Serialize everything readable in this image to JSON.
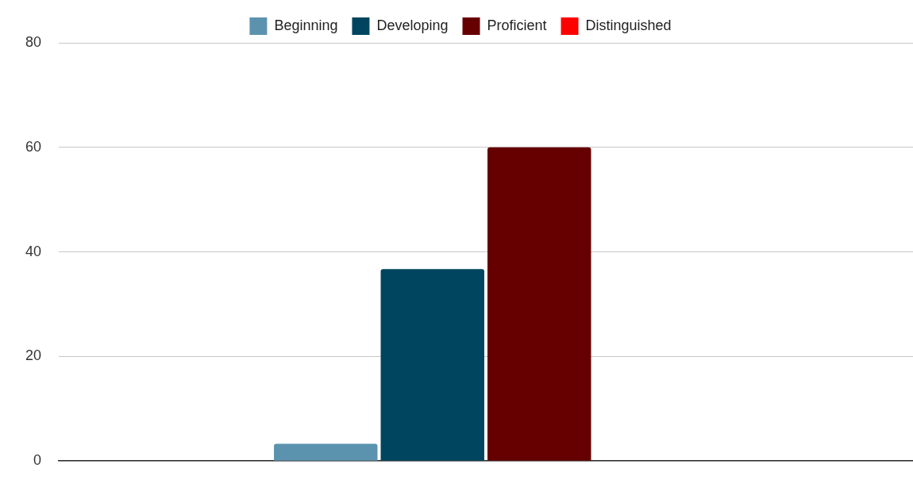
{
  "chart_data": {
    "type": "bar",
    "categories": [
      null
    ],
    "series": [
      {
        "name": "Beginning",
        "color": "#5b93af",
        "values": [
          3.3
        ]
      },
      {
        "name": "Developing",
        "color": "#00455f",
        "values": [
          36.7
        ]
      },
      {
        "name": "Proficient",
        "color": "#660000",
        "values": [
          60
        ]
      },
      {
        "name": "Distinguished",
        "color": "#ff0000",
        "values": [
          0
        ]
      }
    ],
    "ylim": [
      0,
      80
    ],
    "yticks": [
      0,
      20,
      40,
      60,
      80
    ],
    "grid": "y",
    "legend": "top"
  }
}
